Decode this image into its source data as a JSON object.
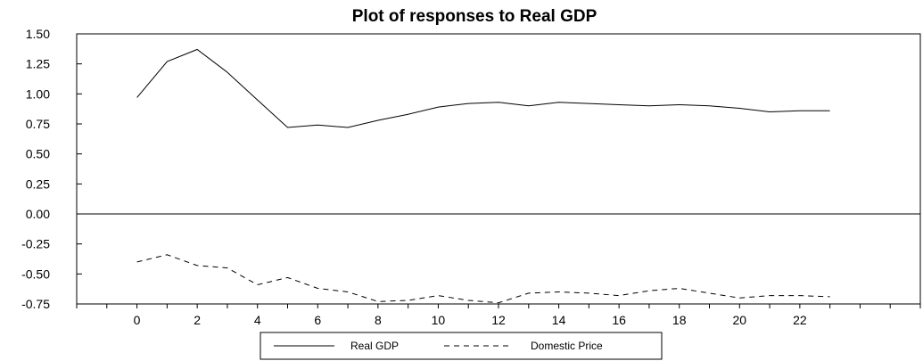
{
  "chart_data": {
    "type": "line",
    "title": "Plot of responses to Real GDP",
    "xlabel": "",
    "ylabel": "",
    "x": [
      0,
      1,
      2,
      3,
      4,
      5,
      6,
      7,
      8,
      9,
      10,
      11,
      12,
      13,
      14,
      15,
      16,
      17,
      18,
      19,
      20,
      21,
      22,
      23
    ],
    "xlim": [
      -2,
      26
    ],
    "ylim": [
      -0.75,
      1.5
    ],
    "x_ticks": [
      0,
      2,
      4,
      6,
      8,
      10,
      12,
      14,
      16,
      18,
      20,
      22
    ],
    "x_tick_labels": [
      "0",
      "2",
      "4",
      "6",
      "8",
      "10",
      "12",
      "14",
      "16",
      "18",
      "20",
      "22"
    ],
    "y_ticks": [
      1.5,
      1.25,
      1.0,
      0.75,
      0.5,
      0.25,
      0.0,
      -0.25,
      -0.5,
      -0.75
    ],
    "y_tick_labels": [
      "1.50",
      "1.25",
      "1.00",
      "0.75",
      "0.50",
      "0.25",
      "0.00",
      "-0.25",
      "-0.50",
      "-0.75"
    ],
    "zero_line": true,
    "grid": false,
    "legend_position": "bottom",
    "series": [
      {
        "name": "Real GDP",
        "style": "solid",
        "color": "#000000",
        "values": [
          0.97,
          1.27,
          1.37,
          1.18,
          0.95,
          0.72,
          0.74,
          0.72,
          0.78,
          0.83,
          0.89,
          0.92,
          0.93,
          0.9,
          0.93,
          0.92,
          0.91,
          0.9,
          0.91,
          0.9,
          0.88,
          0.85,
          0.86,
          0.86
        ]
      },
      {
        "name": "Domestic Price",
        "style": "dashed",
        "color": "#000000",
        "values": [
          -0.4,
          -0.34,
          -0.43,
          -0.45,
          -0.59,
          -0.53,
          -0.62,
          -0.65,
          -0.73,
          -0.72,
          -0.68,
          -0.72,
          -0.74,
          -0.66,
          -0.65,
          -0.66,
          -0.68,
          -0.64,
          -0.62,
          -0.66,
          -0.7,
          -0.68,
          -0.68,
          -0.69
        ]
      }
    ]
  }
}
